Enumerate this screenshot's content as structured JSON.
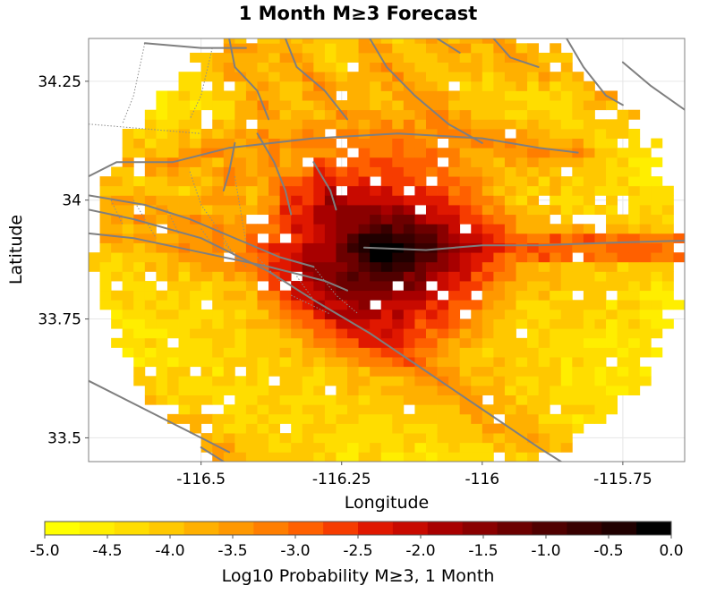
{
  "chart_data": {
    "type": "heatmap",
    "title": "1 Month M≥3 Forecast",
    "xlabel": "Longitude",
    "ylabel": "Latitude",
    "xlim": [
      -116.7,
      -115.64
    ],
    "ylim": [
      33.45,
      34.34
    ],
    "xticks": [
      -116.5,
      -116.25,
      -116.0,
      -115.75
    ],
    "xtick_labels": [
      "-116.5",
      "-116.25",
      "-116",
      "-115.75"
    ],
    "yticks": [
      33.5,
      33.75,
      34.0,
      34.25
    ],
    "ytick_labels": [
      "33.5",
      "33.75",
      "34",
      "34.25"
    ],
    "grid": true,
    "cell_size_deg": 0.02,
    "region": {
      "type": "circle",
      "center": [
        -116.17,
        33.89
      ],
      "radius_deg": 0.52
    },
    "peak": {
      "lon": -116.17,
      "lat": 33.89,
      "log10_prob": -0.6
    },
    "background_log10_prob": -4.7,
    "colorbar": {
      "label": "Log10 Probability M≥3, 1 Month",
      "min": -5.0,
      "max": 0.0,
      "tick_labels": [
        "-5.0",
        "-4.5",
        "-4.0",
        "-3.5",
        "-3.0",
        "-2.5",
        "-2.0",
        "-1.5",
        "-1.0",
        "-0.5",
        "0.0"
      ],
      "colors": [
        "#ffff00",
        "#ffee00",
        "#ffdd00",
        "#ffc800",
        "#ffb000",
        "#ff9800",
        "#ff7e00",
        "#ff6000",
        "#f63c00",
        "#e01800",
        "#c80a00",
        "#a80000",
        "#8a0000",
        "#6c0000",
        "#500000",
        "#380000",
        "#200000",
        "#000000"
      ]
    },
    "faults": [
      [
        [
          -116.7,
          33.98
        ],
        [
          -116.62,
          33.96
        ],
        [
          -116.5,
          33.92
        ],
        [
          -116.38,
          33.85
        ],
        [
          -116.3,
          33.79
        ],
        [
          -116.2,
          33.72
        ],
        [
          -116.1,
          33.64
        ],
        [
          -116.0,
          33.56
        ],
        [
          -115.9,
          33.48
        ],
        [
          -115.86,
          33.45
        ]
      ],
      [
        [
          -116.7,
          34.01
        ],
        [
          -116.6,
          33.99
        ],
        [
          -116.52,
          33.96
        ],
        [
          -116.42,
          33.91
        ],
        [
          -116.36,
          33.88
        ],
        [
          -116.3,
          33.86
        ]
      ],
      [
        [
          -116.7,
          33.93
        ],
        [
          -116.62,
          33.92
        ],
        [
          -116.5,
          33.89
        ],
        [
          -116.38,
          33.86
        ],
        [
          -116.28,
          33.83
        ],
        [
          -116.24,
          33.81
        ]
      ],
      [
        [
          -116.21,
          33.9
        ],
        [
          -116.1,
          33.895
        ],
        [
          -116.0,
          33.905
        ],
        [
          -115.9,
          33.905
        ],
        [
          -115.78,
          33.91
        ],
        [
          -115.64,
          33.915
        ]
      ],
      [
        [
          -116.7,
          34.05
        ],
        [
          -116.65,
          34.08
        ],
        [
          -116.55,
          34.08
        ],
        [
          -116.45,
          34.11
        ],
        [
          -116.3,
          34.13
        ],
        [
          -116.15,
          34.14
        ],
        [
          -116.0,
          34.13
        ],
        [
          -115.9,
          34.11
        ],
        [
          -115.83,
          34.1
        ]
      ],
      [
        [
          -116.45,
          34.34
        ],
        [
          -116.44,
          34.28
        ],
        [
          -116.4,
          34.23
        ],
        [
          -116.38,
          34.17
        ]
      ],
      [
        [
          -116.35,
          34.34
        ],
        [
          -116.33,
          34.28
        ],
        [
          -116.28,
          34.23
        ],
        [
          -116.24,
          34.17
        ]
      ],
      [
        [
          -116.2,
          34.34
        ],
        [
          -116.17,
          34.28
        ],
        [
          -116.12,
          34.22
        ],
        [
          -116.06,
          34.16
        ],
        [
          -116.0,
          34.12
        ]
      ],
      [
        [
          -116.08,
          34.34
        ],
        [
          -116.04,
          34.31
        ]
      ],
      [
        [
          -115.98,
          34.34
        ],
        [
          -115.95,
          34.3
        ],
        [
          -115.9,
          34.28
        ]
      ],
      [
        [
          -115.85,
          34.34
        ],
        [
          -115.82,
          34.28
        ],
        [
          -115.78,
          34.22
        ],
        [
          -115.75,
          34.2
        ]
      ],
      [
        [
          -115.75,
          34.29
        ],
        [
          -115.7,
          34.24
        ],
        [
          -115.64,
          34.19
        ]
      ],
      [
        [
          -116.4,
          34.14
        ],
        [
          -116.37,
          34.08
        ],
        [
          -116.35,
          34.02
        ],
        [
          -116.34,
          33.97
        ]
      ],
      [
        [
          -116.3,
          34.08
        ],
        [
          -116.27,
          34.02
        ],
        [
          -116.26,
          33.98
        ]
      ],
      [
        [
          -116.44,
          34.12
        ],
        [
          -116.45,
          34.06
        ],
        [
          -116.46,
          34.02
        ]
      ],
      [
        [
          -116.7,
          33.62
        ],
        [
          -116.6,
          33.56
        ],
        [
          -116.5,
          33.5
        ],
        [
          -116.45,
          33.47
        ]
      ],
      [
        [
          -116.5,
          33.48
        ],
        [
          -116.46,
          33.45
        ]
      ],
      [
        [
          -116.6,
          34.33
        ],
        [
          -116.5,
          34.32
        ],
        [
          -116.42,
          34.32
        ]
      ]
    ],
    "boundaries": [
      [
        [
          -116.6,
          34.33
        ],
        [
          -116.62,
          34.22
        ],
        [
          -116.64,
          34.16
        ]
      ],
      [
        [
          -116.48,
          34.32
        ],
        [
          -116.5,
          34.22
        ],
        [
          -116.52,
          34.17
        ]
      ],
      [
        [
          -116.7,
          34.16
        ],
        [
          -116.6,
          34.15
        ],
        [
          -116.5,
          34.14
        ]
      ],
      [
        [
          -116.52,
          34.06
        ],
        [
          -116.5,
          33.99
        ],
        [
          -116.47,
          33.94
        ],
        [
          -116.44,
          33.88
        ]
      ],
      [
        [
          -116.44,
          34.05
        ],
        [
          -116.43,
          33.98
        ],
        [
          -116.42,
          33.91
        ]
      ],
      [
        [
          -116.62,
          34.0
        ],
        [
          -116.6,
          33.96
        ],
        [
          -116.58,
          33.92
        ]
      ],
      [
        [
          -116.66,
          34.0
        ],
        [
          -116.64,
          33.95
        ]
      ],
      [
        [
          -116.56,
          33.98
        ],
        [
          -116.54,
          33.93
        ]
      ],
      [
        [
          -116.5,
          33.94
        ],
        [
          -116.47,
          33.89
        ]
      ],
      [
        [
          -116.46,
          33.91
        ],
        [
          -116.42,
          33.86
        ]
      ],
      [
        [
          -116.4,
          33.88
        ],
        [
          -116.36,
          33.83
        ]
      ],
      [
        [
          -116.33,
          33.84
        ],
        [
          -116.3,
          33.79
        ]
      ],
      [
        [
          -116.3,
          33.86
        ],
        [
          -116.26,
          33.8
        ],
        [
          -116.22,
          33.76
        ]
      ],
      [
        [
          -116.34,
          33.8
        ],
        [
          -116.27,
          33.76
        ]
      ]
    ]
  }
}
